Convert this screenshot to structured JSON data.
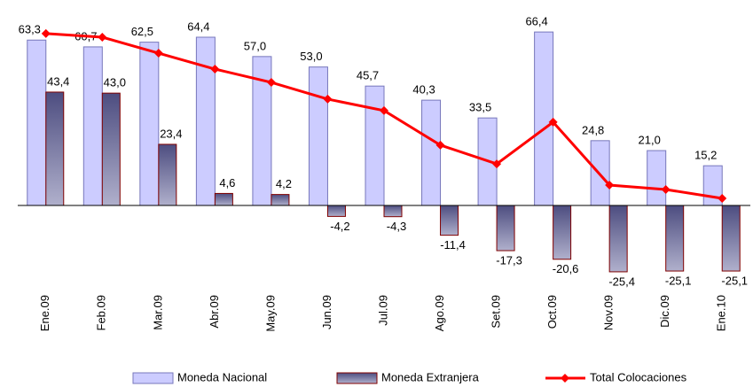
{
  "chart_data": {
    "type": "bar",
    "categories": [
      "Ene.09",
      "Feb.09",
      "Mar.09",
      "Abr.09",
      "May.09",
      "Jun.09",
      "Jul.09",
      "Ago.09",
      "Set.09",
      "Oct.09",
      "Nov.09",
      "Dic.09",
      "Ene.10"
    ],
    "series": [
      {
        "name": "Moneda Nacional",
        "color": "#ccccff",
        "values": [
          63.3,
          60.7,
          62.5,
          64.4,
          57.0,
          53.0,
          45.7,
          40.3,
          33.5,
          66.4,
          24.8,
          21.0,
          15.2
        ],
        "value_labels": [
          "63,3",
          "60,7",
          "62,5",
          "64,4",
          "57,0",
          "53,0",
          "45,7",
          "40,3",
          "33,5",
          "66,4",
          "24,8",
          "21,0",
          "15,2"
        ]
      },
      {
        "name": "Moneda Extranjera",
        "color": "#4d4d80",
        "values": [
          43.4,
          43.0,
          23.4,
          4.6,
          4.2,
          -4.2,
          -4.3,
          -11.4,
          -17.3,
          -20.6,
          -25.4,
          -25.1,
          -25.1
        ],
        "value_labels": [
          "43,4",
          "43,0",
          "23,4",
          "4,6",
          "4,2",
          "-4,2",
          "-4,3",
          "-11,4",
          "-17,3",
          "-20,6",
          "-25,4",
          "-25,1",
          "-25,1"
        ]
      },
      {
        "name": "Total Colocaciones",
        "color": "#ff0000",
        "type": "line",
        "values": [
          65.8,
          64.4,
          58.3,
          52.2,
          47.1,
          40.7,
          36.3,
          23.1,
          15.9,
          31.9,
          7.8,
          6.1,
          2.7
        ]
      }
    ],
    "ylim": [
      -30,
      70
    ]
  }
}
